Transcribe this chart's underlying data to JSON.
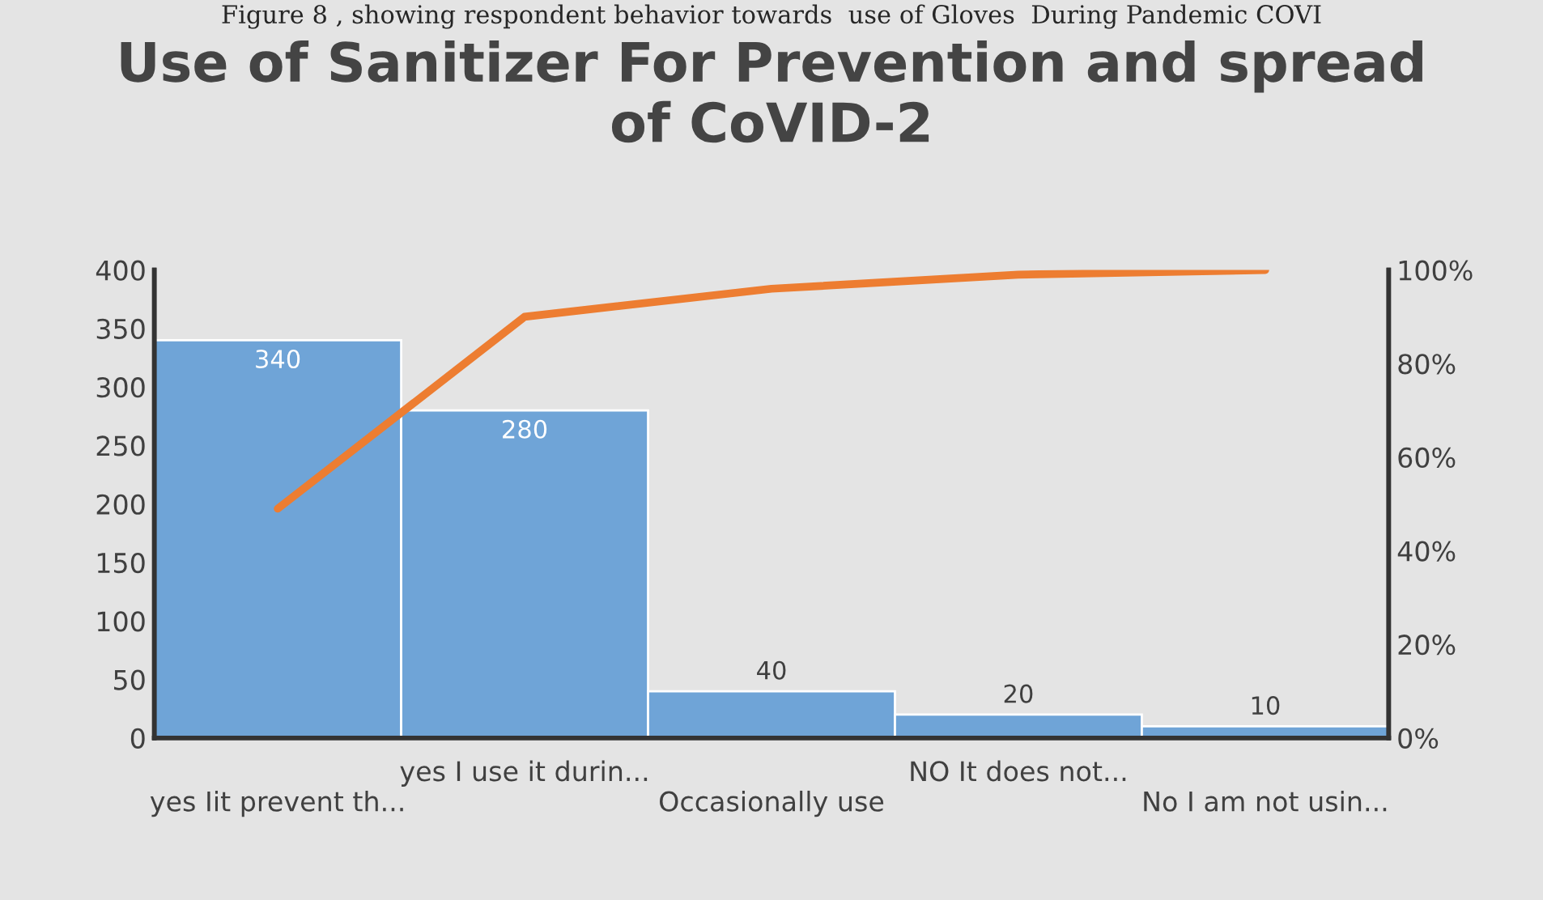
{
  "chart_data": {
    "type": "bar",
    "title": "Use of Sanitizer For Prevention and spread\nof CoVID-2",
    "annotations": [
      "Figure 8 , showing respondent behavior towards  use of Gloves  During Pandemic COVI"
    ],
    "categories": [
      "yes Iit prevent th...",
      "yes I use it durin...",
      "Occasionally use",
      "NO It does not...",
      "No I am not usin..."
    ],
    "series": [
      {
        "color": "#6fa4d7",
        "values": [
          340,
          280,
          40,
          20,
          10
        ],
        "value_labels": [
          "340",
          "280",
          "40",
          "20",
          "10"
        ]
      },
      {
        "type": "line",
        "axis": "y2",
        "color": "#ed7d31",
        "values": [
          49,
          90,
          96,
          99,
          100
        ]
      }
    ],
    "ylim": [
      0,
      400
    ],
    "yticks": [
      0,
      50,
      100,
      150,
      200,
      250,
      300,
      350,
      400
    ],
    "y2lim": [
      0,
      100
    ],
    "y2ticks": [
      {
        "value": 0,
        "label": "0%"
      },
      {
        "value": 20,
        "label": "20%"
      },
      {
        "value": 40,
        "label": "40%"
      },
      {
        "value": 60,
        "label": "60%"
      },
      {
        "value": 80,
        "label": "80%"
      },
      {
        "value": 100,
        "label": "100%"
      }
    ],
    "grid": false,
    "legend": false
  }
}
